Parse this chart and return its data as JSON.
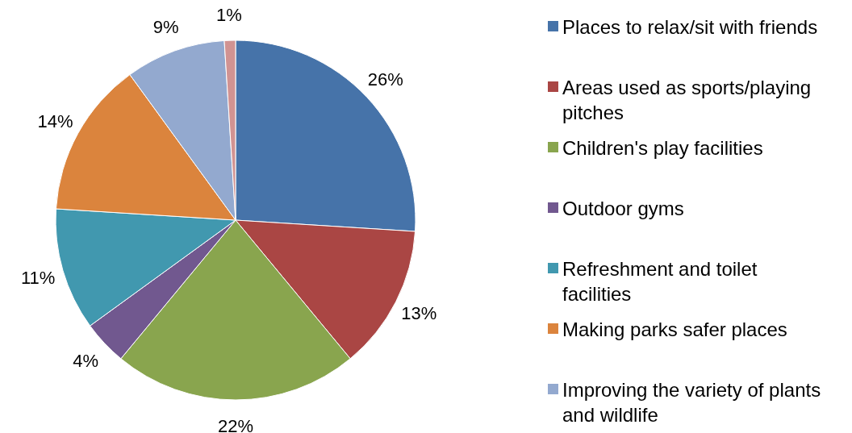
{
  "chart_data": {
    "type": "pie",
    "categories": [
      "Places to relax/sit with friends",
      "Areas used as sports/playing pitches",
      "Children's play facilities",
      "Outdoor gyms",
      "Refreshment and toilet facilities",
      "Making parks safer places",
      "Improving the variety of plants and wildlife",
      null
    ],
    "values": [
      26,
      13,
      22,
      4,
      11,
      14,
      9,
      1
    ],
    "colors": [
      "#4673a9",
      "#aa4644",
      "#89a54e",
      "#71588f",
      "#4198af",
      "#db843d",
      "#93a9cf",
      "#d19392"
    ],
    "value_labels": [
      "26%",
      "13%",
      "22%",
      "4%",
      "11%",
      "14%",
      "9%",
      "1%"
    ],
    "legend": "right"
  }
}
